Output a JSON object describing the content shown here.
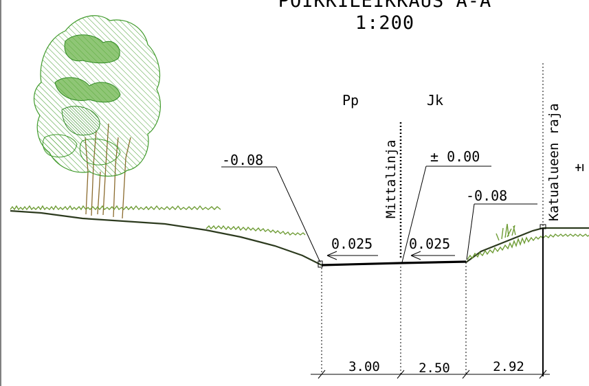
{
  "title": {
    "line1": "POIKKILEIKKAUS A-A",
    "line2": "1:200"
  },
  "zones": {
    "pp": "Pp",
    "jk": "Jk"
  },
  "vertical_labels": {
    "mittalinja": "Mittalinja",
    "katualueen_raja": "Katualueen raja",
    "edge_mark": "±"
  },
  "elevations": {
    "left": "-0.08",
    "center": "± 0.00",
    "right": "-0.08"
  },
  "slopes": {
    "left": "0.025",
    "right": "0.025"
  },
  "dimensions": {
    "pp_width": "3.00",
    "jk_width": "2.50",
    "slope_width": "2.92"
  },
  "colors": {
    "tree_hatch": "#3f9a2a",
    "tree_fill": "#5fae3c",
    "trunk": "#8a6a2c",
    "grass": "#6e9c35",
    "ground": "#2c3a1e"
  }
}
